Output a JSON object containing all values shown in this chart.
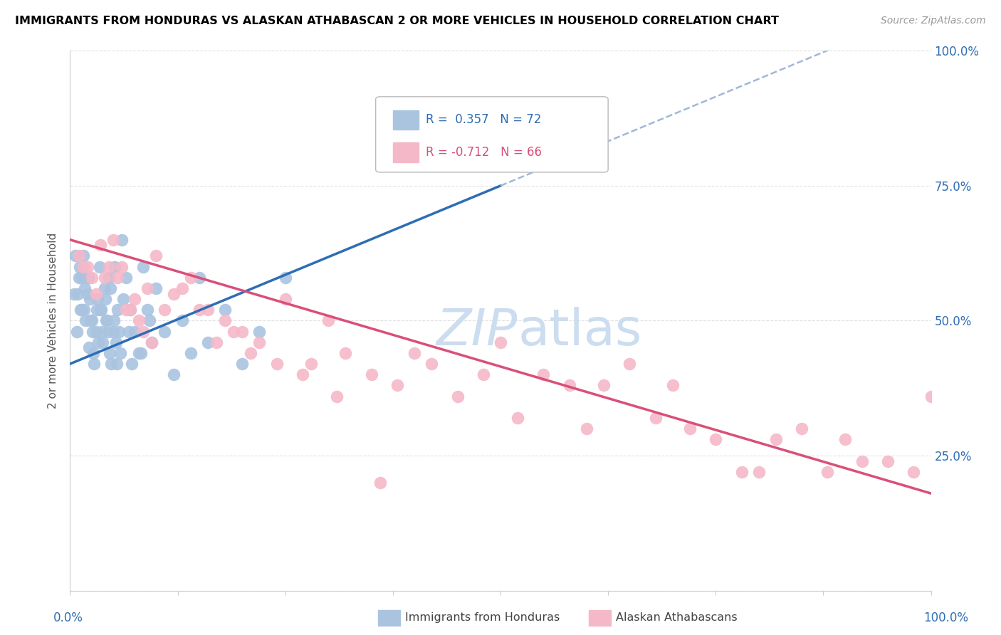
{
  "title": "IMMIGRANTS FROM HONDURAS VS ALASKAN ATHABASCAN 2 OR MORE VEHICLES IN HOUSEHOLD CORRELATION CHART",
  "source": "Source: ZipAtlas.com",
  "ylabel": "2 or more Vehicles in Household",
  "legend1_label": "Immigrants from Honduras",
  "legend2_label": "Alaskan Athabascans",
  "R_blue": 0.357,
  "N_blue": 72,
  "R_pink": -0.712,
  "N_pink": 66,
  "blue_color": "#aac4e0",
  "pink_color": "#f5b8c8",
  "blue_line_color": "#2e6db4",
  "pink_line_color": "#d94f78",
  "dashed_line_color": "#a0b8d8",
  "watermark_color": "#ccddf0",
  "blue_scatter_x": [
    0.5,
    0.8,
    1.0,
    1.2,
    1.5,
    1.8,
    2.0,
    2.2,
    2.5,
    2.8,
    3.0,
    3.2,
    3.5,
    3.8,
    4.0,
    4.2,
    4.5,
    4.8,
    5.0,
    5.2,
    5.5,
    5.8,
    6.0,
    6.5,
    7.0,
    7.5,
    8.0,
    8.5,
    9.0,
    9.5,
    10.0,
    11.0,
    12.0,
    13.0,
    14.0,
    15.0,
    16.0,
    18.0,
    20.0,
    22.0,
    1.1,
    1.4,
    1.7,
    2.1,
    2.4,
    2.7,
    3.1,
    3.4,
    3.7,
    4.1,
    4.4,
    4.7,
    5.1,
    5.4,
    5.7,
    6.2,
    6.8,
    7.2,
    8.2,
    9.2,
    0.6,
    0.9,
    1.3,
    1.6,
    2.3,
    2.6,
    3.3,
    3.6,
    4.3,
    4.6,
    5.3,
    25.0
  ],
  "blue_scatter_y": [
    55,
    48,
    58,
    52,
    62,
    50,
    55,
    45,
    50,
    42,
    48,
    54,
    52,
    46,
    56,
    50,
    58,
    42,
    48,
    60,
    52,
    44,
    65,
    58,
    52,
    48,
    44,
    60,
    52,
    46,
    56,
    48,
    40,
    50,
    44,
    58,
    46,
    52,
    42,
    48,
    60,
    52,
    56,
    58,
    50,
    44,
    52,
    60,
    48,
    54,
    48,
    56,
    50,
    42,
    48,
    54,
    48,
    42,
    44,
    50,
    62,
    55,
    58,
    52,
    54,
    48,
    46,
    52,
    50,
    44,
    46,
    58
  ],
  "pink_scatter_x": [
    1.0,
    2.0,
    3.0,
    4.0,
    5.0,
    6.0,
    7.0,
    8.0,
    9.0,
    10.0,
    12.0,
    14.0,
    16.0,
    18.0,
    20.0,
    22.0,
    25.0,
    28.0,
    30.0,
    32.0,
    35.0,
    38.0,
    40.0,
    42.0,
    45.0,
    48.0,
    50.0,
    52.0,
    55.0,
    58.0,
    60.0,
    62.0,
    65.0,
    68.0,
    70.0,
    72.0,
    75.0,
    78.0,
    80.0,
    82.0,
    85.0,
    88.0,
    90.0,
    92.0,
    95.0,
    98.0,
    100.0,
    1.5,
    2.5,
    3.5,
    4.5,
    5.5,
    6.5,
    7.5,
    8.5,
    9.5,
    11.0,
    13.0,
    15.0,
    17.0,
    19.0,
    21.0,
    24.0,
    27.0,
    31.0,
    36.0
  ],
  "pink_scatter_y": [
    62,
    60,
    55,
    58,
    65,
    60,
    52,
    50,
    56,
    62,
    55,
    58,
    52,
    50,
    48,
    46,
    54,
    42,
    50,
    44,
    40,
    38,
    44,
    42,
    36,
    40,
    46,
    32,
    40,
    38,
    30,
    38,
    42,
    32,
    38,
    30,
    28,
    22,
    22,
    28,
    30,
    22,
    28,
    24,
    24,
    22,
    36,
    60,
    58,
    64,
    60,
    58,
    52,
    54,
    48,
    46,
    52,
    56,
    52,
    46,
    48,
    44,
    42,
    40,
    36,
    20
  ],
  "xlim": [
    0,
    100
  ],
  "ylim": [
    0,
    100
  ],
  "yticks": [
    0,
    25,
    50,
    75,
    100
  ],
  "ytick_labels_right": [
    "",
    "25.0%",
    "50.0%",
    "75.0%",
    "100.0%"
  ],
  "grid_color": "#e0e0e0",
  "background_color": "#ffffff"
}
